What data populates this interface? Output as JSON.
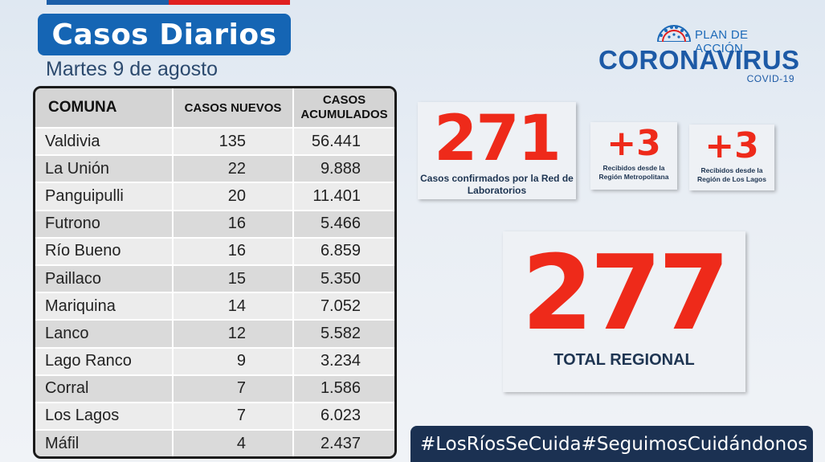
{
  "header": {
    "title": "Casos Diarios",
    "date": "Martes 9 de agosto"
  },
  "logo": {
    "plan": "PLAN DE ACCIÓN",
    "name": "CORONAVIRUS",
    "sub": "COVID-19"
  },
  "table": {
    "headers": [
      "COMUNA",
      "CASOS NUEVOS",
      "CASOS ACUMULADOS"
    ],
    "rows": [
      {
        "comuna": "Valdivia",
        "nuevos": "135",
        "acumulados": "56.441"
      },
      {
        "comuna": "La Unión",
        "nuevos": "22",
        "acumulados": "9.888"
      },
      {
        "comuna": "Panguipulli",
        "nuevos": "20",
        "acumulados": "11.401"
      },
      {
        "comuna": "Futrono",
        "nuevos": "16",
        "acumulados": "5.466"
      },
      {
        "comuna": "Río Bueno",
        "nuevos": "16",
        "acumulados": "6.859"
      },
      {
        "comuna": "Paillaco",
        "nuevos": "15",
        "acumulados": "5.350"
      },
      {
        "comuna": "Mariquina",
        "nuevos": "14",
        "acumulados": "7.052"
      },
      {
        "comuna": "Lanco",
        "nuevos": "12",
        "acumulados": "5.582"
      },
      {
        "comuna": "Lago Ranco",
        "nuevos": "9",
        "acumulados": "3.234"
      },
      {
        "comuna": "Corral",
        "nuevos": "7",
        "acumulados": "1.586"
      },
      {
        "comuna": "Los Lagos",
        "nuevos": "7",
        "acumulados": "6.023"
      },
      {
        "comuna": "Máfil",
        "nuevos": "4",
        "acumulados": "2.437"
      }
    ]
  },
  "stats": {
    "confirmed": {
      "value": "271",
      "caption": "Casos confirmados por la Red de Laboratorios"
    },
    "metropolitana": {
      "value": "+3",
      "caption": "Recibidos desde la Región Metropolitana"
    },
    "los_lagos": {
      "value": "+3",
      "caption": "Recibidos desde la Región de Los Lagos"
    },
    "total": {
      "value": "277",
      "caption": "TOTAL REGIONAL"
    }
  },
  "hashtags": [
    "#LosRíosSeCuida",
    "#SeguimosCuidándonos"
  ],
  "colors": {
    "accent_red": "#ee2a1a",
    "brand_blue": "#1565b4",
    "dark_navy": "#1b3152"
  }
}
